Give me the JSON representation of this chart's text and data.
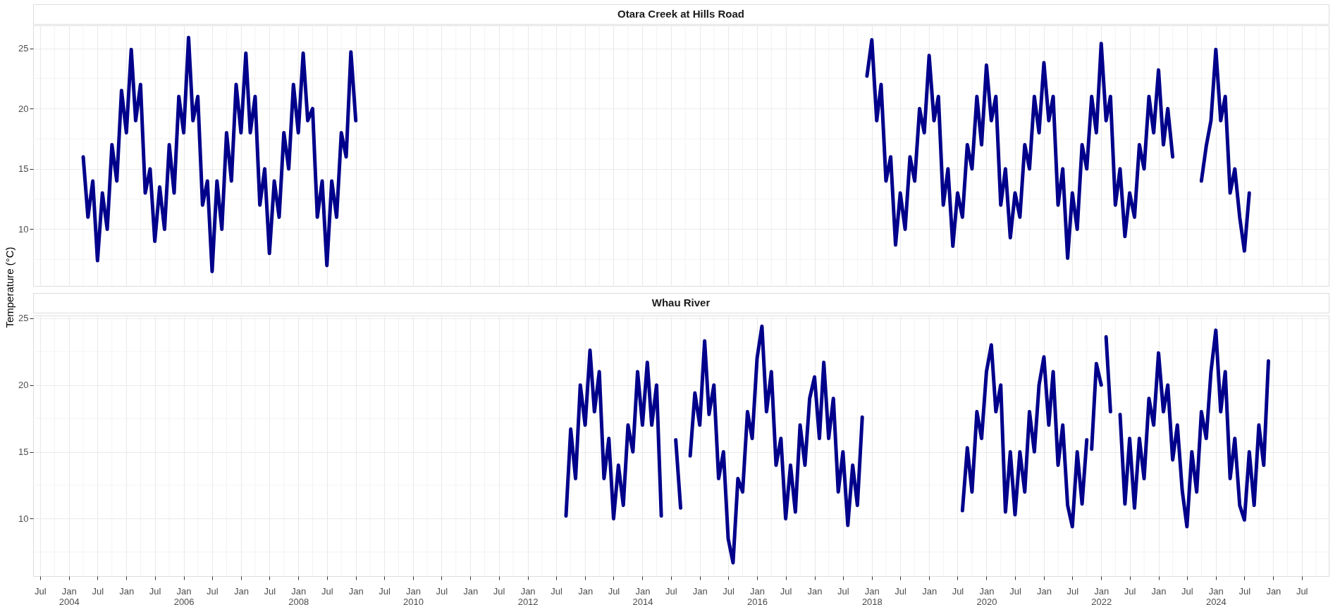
{
  "chart_data": [
    {
      "type": "line",
      "title": "Otara Creek at Hills Road",
      "ylabel": "Temperature (°C)",
      "grid": true,
      "tick_labels": "y",
      "xlim": [
        "2003-05-18",
        "2025-12-20"
      ],
      "ylim": [
        5.3,
        26.9
      ],
      "yticks": [
        10,
        15,
        20,
        25
      ],
      "xticks": [
        {
          "value": "2003-07",
          "label": null
        },
        {
          "value": "2004-01",
          "label": null
        },
        {
          "value": "2004-07",
          "label": null
        },
        {
          "value": "2005-01",
          "label": null
        },
        {
          "value": "2005-07",
          "label": null
        },
        {
          "value": "2006-01",
          "label": null
        },
        {
          "value": "2006-07",
          "label": null
        },
        {
          "value": "2007-01",
          "label": null
        },
        {
          "value": "2007-07",
          "label": null
        },
        {
          "value": "2008-01",
          "label": null
        },
        {
          "value": "2008-07",
          "label": null
        },
        {
          "value": "2009-01",
          "label": null
        },
        {
          "value": "2009-07",
          "label": null
        },
        {
          "value": "2010-01",
          "label": null
        },
        {
          "value": "2010-07",
          "label": null
        },
        {
          "value": "2011-01",
          "label": null
        },
        {
          "value": "2011-07",
          "label": null
        },
        {
          "value": "2012-01",
          "label": null
        },
        {
          "value": "2012-07",
          "label": null
        },
        {
          "value": "2013-01",
          "label": null
        },
        {
          "value": "2013-07",
          "label": null
        },
        {
          "value": "2014-01",
          "label": null
        },
        {
          "value": "2014-07",
          "label": null
        },
        {
          "value": "2015-01",
          "label": null
        },
        {
          "value": "2015-07",
          "label": null
        },
        {
          "value": "2016-01",
          "label": null
        },
        {
          "value": "2016-07",
          "label": null
        },
        {
          "value": "2017-01",
          "label": null
        },
        {
          "value": "2017-07",
          "label": null
        },
        {
          "value": "2018-01",
          "label": null
        },
        {
          "value": "2018-07",
          "label": null
        },
        {
          "value": "2019-01",
          "label": null
        },
        {
          "value": "2019-07",
          "label": null
        },
        {
          "value": "2020-01",
          "label": null
        },
        {
          "value": "2020-07",
          "label": null
        },
        {
          "value": "2021-01",
          "label": null
        },
        {
          "value": "2021-07",
          "label": null
        },
        {
          "value": "2022-01",
          "label": null
        },
        {
          "value": "2022-07",
          "label": null
        },
        {
          "value": "2023-01",
          "label": null
        },
        {
          "value": "2023-07",
          "label": null
        },
        {
          "value": "2024-01",
          "label": null
        },
        {
          "value": "2024-07",
          "label": null
        },
        {
          "value": "2025-01",
          "label": null
        },
        {
          "value": "2025-07",
          "label": null
        }
      ],
      "x": [
        "2004-04",
        "2004-05",
        "2004-06",
        "2004-07",
        "2004-08",
        "2004-09",
        "2004-10",
        "2004-11",
        "2004-12",
        "2005-01",
        "2005-02",
        "2005-03",
        "2005-04",
        "2005-05",
        "2005-06",
        "2005-07",
        "2005-08",
        "2005-09",
        "2005-10",
        "2005-11",
        "2005-12",
        "2006-01",
        "2006-02",
        "2006-03",
        "2006-04",
        "2006-05",
        "2006-06",
        "2006-07",
        "2006-08",
        "2006-09",
        "2006-10",
        "2006-11",
        "2006-12",
        "2007-01",
        "2007-02",
        "2007-03",
        "2007-04",
        "2007-05",
        "2007-06",
        "2007-07",
        "2007-08",
        "2007-09",
        "2007-10",
        "2007-11",
        "2007-12",
        "2008-01",
        "2008-02",
        "2008-03",
        "2008-04",
        "2008-05",
        "2008-06",
        "2008-07",
        "2008-08",
        "2008-09",
        "2008-10",
        "2008-11",
        "2008-12",
        "2009-01",
        "2013-01",
        "2017-12",
        "2018-01",
        "2018-02",
        "2018-03",
        "2018-04",
        "2018-05",
        "2018-06",
        "2018-07",
        "2018-08",
        "2018-09",
        "2018-10",
        "2018-11",
        "2018-12",
        "2019-01",
        "2019-02",
        "2019-03",
        "2019-04",
        "2019-05",
        "2019-06",
        "2019-07",
        "2019-08",
        "2019-09",
        "2019-10",
        "2019-11",
        "2019-12",
        "2020-01",
        "2020-02",
        "2020-03",
        "2020-04",
        "2020-05",
        "2020-06",
        "2020-07",
        "2020-08",
        "2020-09",
        "2020-10",
        "2020-11",
        "2020-12",
        "2021-01",
        "2021-02",
        "2021-03",
        "2021-04",
        "2021-05",
        "2021-06",
        "2021-07",
        "2021-08",
        "2021-09",
        "2021-10",
        "2021-11",
        "2021-12",
        "2022-01",
        "2022-02",
        "2022-03",
        "2022-04",
        "2022-05",
        "2022-06",
        "2022-07",
        "2022-08",
        "2022-09",
        "2022-10",
        "2022-11",
        "2022-12",
        "2023-01",
        "2023-02",
        "2023-03",
        "2023-04",
        "2023-07",
        "2023-10",
        "2023-11",
        "2023-12",
        "2024-01",
        "2024-02",
        "2024-03",
        "2024-04",
        "2024-05",
        "2024-06",
        "2024-07",
        "2024-08"
      ],
      "series": [
        {
          "color": "#00008b",
          "values": [
            16,
            11,
            14,
            7.4,
            13,
            10,
            17,
            14,
            21.5,
            18,
            24.9,
            19,
            22,
            13,
            15,
            9,
            13.5,
            10,
            17,
            13,
            21,
            18,
            25.9,
            19,
            21,
            12,
            14,
            6.5,
            14,
            10,
            18,
            14,
            22,
            18,
            24.6,
            18,
            21,
            12,
            15,
            8.0,
            14,
            11,
            18,
            15,
            22,
            18,
            24.6,
            19,
            20,
            11,
            14,
            7.0,
            14,
            11,
            18,
            16,
            24.7,
            19,
            null,
            22.7,
            25.7,
            19,
            22,
            14,
            16,
            8.7,
            13,
            10,
            16,
            14,
            20,
            18,
            24.4,
            19,
            21,
            12,
            15,
            8.6,
            13,
            11,
            17,
            15,
            21,
            17,
            23.6,
            19,
            21,
            12,
            15,
            9.3,
            13,
            11,
            17,
            15,
            21,
            18,
            23.8,
            19,
            21,
            12,
            15,
            7.6,
            13,
            10,
            17,
            15,
            21,
            18,
            25.4,
            19,
            21,
            12,
            15,
            9.4,
            13,
            11,
            17,
            15,
            21,
            18,
            23.2,
            17,
            20,
            16,
            null,
            14.0,
            16.9,
            19,
            24.9,
            19,
            21,
            13,
            15,
            11,
            8.2,
            13
          ]
        }
      ]
    },
    {
      "type": "line",
      "title": "Whau River",
      "grid": true,
      "xlim": [
        "2003-05-18",
        "2025-12-20"
      ],
      "ylim": [
        5.7,
        25.2
      ],
      "yticks": [
        10,
        15,
        20,
        25
      ],
      "xticks": [
        {
          "value": "2003-07",
          "label": "Jul"
        },
        {
          "value": "2004-01",
          "label": "Jan 2004"
        },
        {
          "value": "2004-07",
          "label": "Jul"
        },
        {
          "value": "2005-01",
          "label": "Jan"
        },
        {
          "value": "2005-07",
          "label": "Jul"
        },
        {
          "value": "2006-01",
          "label": "Jan 2006"
        },
        {
          "value": "2006-07",
          "label": "Jul"
        },
        {
          "value": "2007-01",
          "label": "Jan"
        },
        {
          "value": "2007-07",
          "label": "Jul"
        },
        {
          "value": "2008-01",
          "label": "Jan 2008"
        },
        {
          "value": "2008-07",
          "label": "Jul"
        },
        {
          "value": "2009-01",
          "label": "Jan"
        },
        {
          "value": "2009-07",
          "label": "Jul"
        },
        {
          "value": "2010-01",
          "label": "Jan 2010"
        },
        {
          "value": "2010-07",
          "label": "Jul"
        },
        {
          "value": "2011-01",
          "label": "Jan"
        },
        {
          "value": "2011-07",
          "label": "Jul"
        },
        {
          "value": "2012-01",
          "label": "Jan 2012"
        },
        {
          "value": "2012-07",
          "label": "Jul"
        },
        {
          "value": "2013-01",
          "label": "Jan"
        },
        {
          "value": "2013-07",
          "label": "Jul"
        },
        {
          "value": "2014-01",
          "label": "Jan 2014"
        },
        {
          "value": "2014-07",
          "label": "Jul"
        },
        {
          "value": "2015-01",
          "label": "Jan"
        },
        {
          "value": "2015-07",
          "label": "Jul"
        },
        {
          "value": "2016-01",
          "label": "Jan 2016"
        },
        {
          "value": "2016-07",
          "label": "Jul"
        },
        {
          "value": "2017-01",
          "label": "Jan"
        },
        {
          "value": "2017-07",
          "label": "Jul"
        },
        {
          "value": "2018-01",
          "label": "Jan 2018"
        },
        {
          "value": "2018-07",
          "label": "Jul"
        },
        {
          "value": "2019-01",
          "label": "Jan"
        },
        {
          "value": "2019-07",
          "label": "Jul"
        },
        {
          "value": "2020-01",
          "label": "Jan 2020"
        },
        {
          "value": "2020-07",
          "label": "Jul"
        },
        {
          "value": "2021-01",
          "label": "Jan"
        },
        {
          "value": "2021-07",
          "label": "Jul"
        },
        {
          "value": "2022-01",
          "label": "Jan 2022"
        },
        {
          "value": "2022-07",
          "label": "Jul"
        },
        {
          "value": "2023-01",
          "label": "Jan"
        },
        {
          "value": "2023-07",
          "label": "Jul"
        },
        {
          "value": "2024-01",
          "label": "Jan 2024"
        },
        {
          "value": "2024-07",
          "label": "Jul"
        },
        {
          "value": "2025-01",
          "label": "Jan"
        },
        {
          "value": "2025-07",
          "label": "Jul"
        }
      ],
      "x": [
        "2012-09",
        "2012-10",
        "2012-11",
        "2012-12",
        "2013-01",
        "2013-02",
        "2013-03",
        "2013-04",
        "2013-05",
        "2013-06",
        "2013-07",
        "2013-08",
        "2013-09",
        "2013-10",
        "2013-11",
        "2013-12",
        "2014-01",
        "2014-02",
        "2014-03",
        "2014-04",
        "2014-05",
        "2014-07",
        "2014-08",
        "2014-09",
        "2014-10",
        "2014-11",
        "2014-12",
        "2015-01",
        "2015-02",
        "2015-03",
        "2015-04",
        "2015-05",
        "2015-06",
        "2015-07",
        "2015-08",
        "2015-09",
        "2015-10",
        "2015-11",
        "2015-12",
        "2016-01",
        "2016-02",
        "2016-03",
        "2016-04",
        "2016-05",
        "2016-06",
        "2016-07",
        "2016-08",
        "2016-09",
        "2016-10",
        "2016-11",
        "2016-12",
        "2017-01",
        "2017-02",
        "2017-03",
        "2017-04",
        "2017-05",
        "2017-06",
        "2017-07",
        "2017-08",
        "2017-09",
        "2017-10",
        "2017-11",
        "2018-12",
        "2019-08",
        "2019-09",
        "2019-10",
        "2019-11",
        "2019-12",
        "2020-01",
        "2020-02",
        "2020-03",
        "2020-04",
        "2020-05",
        "2020-06",
        "2020-07",
        "2020-08",
        "2020-09",
        "2020-10",
        "2020-11",
        "2020-12",
        "2021-01",
        "2021-02",
        "2021-03",
        "2021-04",
        "2021-05",
        "2021-06",
        "2021-07",
        "2021-08",
        "2021-09",
        "2021-10",
        "2021-10-20",
        "2021-11",
        "2021-12",
        "2022-01",
        "2022-01-20",
        "2022-02",
        "2022-03",
        "2022-04",
        "2022-05",
        "2022-06",
        "2022-07",
        "2022-08",
        "2022-09",
        "2022-10",
        "2022-11",
        "2022-12",
        "2023-01",
        "2023-02",
        "2023-03",
        "2023-04",
        "2023-05",
        "2023-06",
        "2023-07",
        "2023-08",
        "2023-09",
        "2023-10",
        "2023-11",
        "2023-12",
        "2024-01",
        "2024-02",
        "2024-03",
        "2024-04",
        "2024-05",
        "2024-06",
        "2024-07",
        "2024-08",
        "2024-09",
        "2024-10",
        "2024-11",
        "2024-12"
      ],
      "series": [
        {
          "color": "#00008b",
          "values": [
            10.2,
            16.7,
            13,
            20,
            17,
            22.6,
            18,
            21,
            13,
            16,
            10.0,
            14,
            11,
            17,
            15,
            21,
            17,
            21.7,
            17,
            20,
            10.2,
            null,
            15.9,
            10.8,
            null,
            14.7,
            19.4,
            17,
            23.3,
            17.8,
            20,
            13,
            15,
            8.5,
            6.7,
            13,
            12,
            18,
            16,
            22,
            24.4,
            18,
            21,
            14,
            16,
            10.0,
            14,
            10.5,
            17,
            14,
            19,
            20.6,
            16,
            21.7,
            16,
            19,
            12,
            15,
            9.5,
            14,
            11,
            17.6,
            null,
            10.6,
            15.3,
            12,
            18,
            16,
            21,
            23.0,
            18,
            20,
            10.5,
            15,
            10.3,
            15,
            12,
            18,
            15,
            20,
            22.1,
            17,
            21,
            14,
            17,
            11,
            9.4,
            15,
            11.1,
            15.9,
            null,
            15.2,
            21.6,
            20.0,
            null,
            23.6,
            18.0,
            null,
            17.8,
            11.1,
            16,
            10.8,
            16,
            13,
            19,
            17,
            22.4,
            18,
            20,
            14.4,
            17,
            12.1,
            9.4,
            15,
            12,
            18,
            16,
            21,
            24.1,
            18,
            21,
            13,
            16,
            11,
            9.9,
            15,
            11,
            17,
            14,
            21.8
          ]
        }
      ]
    }
  ]
}
